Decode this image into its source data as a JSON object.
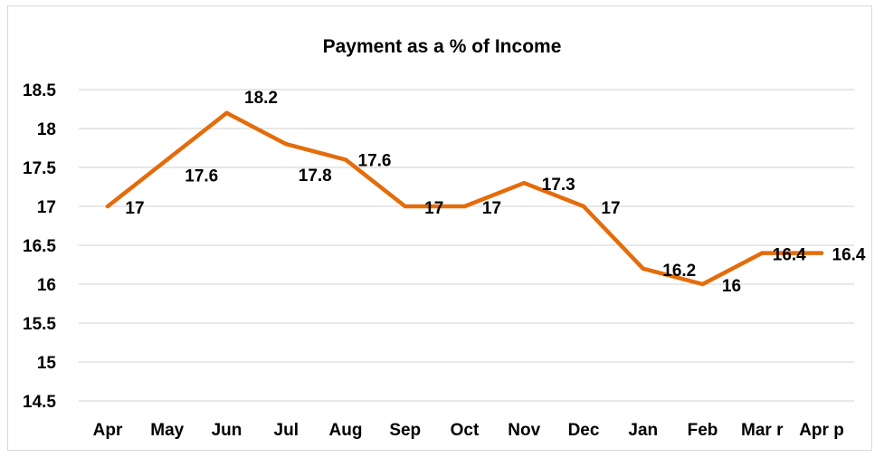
{
  "chart_data": {
    "type": "line",
    "title": "Payment as a % of Income",
    "xlabel": "",
    "ylabel": "",
    "categories": [
      "Apr",
      "May",
      "Jun",
      "Jul",
      "Aug",
      "Sep",
      "Oct",
      "Nov",
      "Dec",
      "Jan",
      "Feb",
      "Mar r",
      "Apr p"
    ],
    "series": [
      {
        "values": [
          17,
          17.6,
          18.2,
          17.8,
          17.6,
          17,
          17,
          17.3,
          17,
          16.2,
          16,
          16.4,
          16.4
        ],
        "color": "#E46C0A"
      }
    ],
    "data_labels": [
      "17",
      "17.6",
      "18.2",
      "17.8",
      "17.6",
      "17",
      "17",
      "17.3",
      "17",
      "16.2",
      "16",
      "16.4",
      "16.4"
    ],
    "ylim": [
      14.5,
      18.5
    ],
    "yticks": [
      14.5,
      15,
      15.5,
      16,
      16.5,
      17,
      17.5,
      18,
      18.5
    ],
    "ytick_labels": [
      "14.5",
      "15",
      "15.5",
      "16",
      "16.5",
      "17",
      "17.5",
      "18",
      "18.5"
    ],
    "grid": true,
    "gridline_color": "#D9D9D9",
    "legend": "none"
  }
}
